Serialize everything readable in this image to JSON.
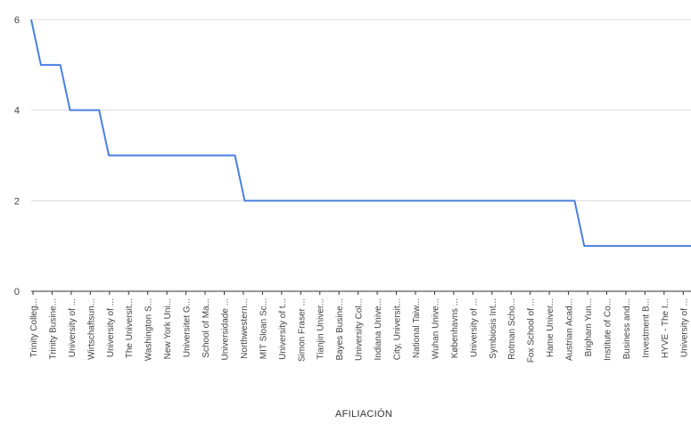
{
  "chart_data": {
    "type": "line",
    "title": "",
    "xlabel": "AFILIACIÓN",
    "ylabel": "",
    "ylim": [
      0,
      6
    ],
    "yticks": [
      0,
      2,
      4,
      6
    ],
    "grid": true,
    "line_color": "#4a7fe0",
    "tick_labels": [
      "Trinity Colleg...",
      "Trinity Busine...",
      "University of ...",
      "Wirtschaftsun...",
      "University of ...",
      "The Universit...",
      "Washington S...",
      "New York Uni...",
      "Universitet G...",
      "School of Ma...",
      "Universidade ...",
      "Northwestern...",
      "MIT Sloan Sc...",
      "University of t...",
      "Simon Fraser ...",
      "Tianjin Univer...",
      "Bayes Busine...",
      "University Col...",
      "Indiana Unive...",
      "City, Universit...",
      "National Taiw...",
      "Wuhan Unive...",
      "Københavns ...",
      "University of ...",
      "Symbiosis Int...",
      "Rotman Scho...",
      "Fox School of ...",
      "Hame Univer...",
      "Austrian Acad...",
      "Brigham Yun...",
      "Institute of Co...",
      "Business and...",
      "Investment B...",
      "HYVE - The I...",
      "University of ..."
    ],
    "x": [
      0,
      1,
      2,
      3,
      4,
      5,
      6,
      7,
      8,
      9,
      10,
      11,
      12,
      13,
      14,
      15,
      16,
      17,
      18,
      19,
      20,
      21,
      22,
      23,
      24,
      25,
      26,
      27,
      28,
      29,
      30,
      31,
      32,
      33,
      34,
      35,
      36,
      37,
      38,
      39,
      40,
      41,
      42,
      43,
      44,
      45,
      46,
      47,
      48,
      49,
      50,
      51,
      52,
      53,
      54,
      55,
      56,
      57,
      58,
      59,
      60,
      61,
      62,
      63,
      64,
      65,
      66,
      67,
      68
    ],
    "series": [
      {
        "values": [
          6,
          5,
          5,
          5,
          4,
          4,
          4,
          4,
          3,
          3,
          3,
          3,
          3,
          3,
          3,
          3,
          3,
          3,
          3,
          3,
          3,
          3,
          2,
          2,
          2,
          2,
          2,
          2,
          2,
          2,
          2,
          2,
          2,
          2,
          2,
          2,
          2,
          2,
          2,
          2,
          2,
          2,
          2,
          2,
          2,
          2,
          2,
          2,
          2,
          2,
          2,
          2,
          2,
          2,
          2,
          2,
          2,
          1,
          1,
          1,
          1,
          1,
          1,
          1,
          1,
          1,
          1,
          1,
          1
        ]
      }
    ]
  }
}
